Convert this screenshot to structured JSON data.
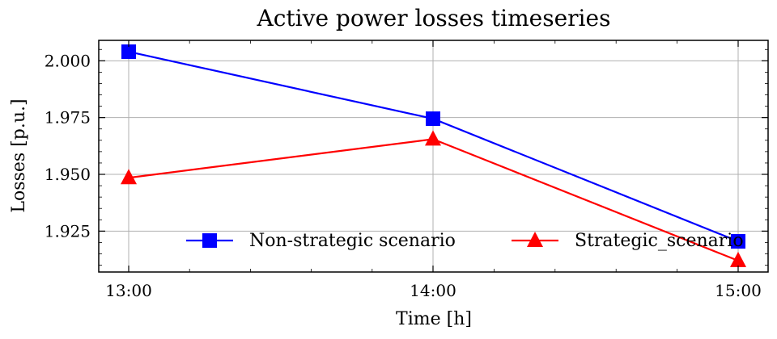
{
  "chart_data": {
    "type": "line",
    "title": "Active power losses timeseries",
    "xlabel": "Time [h]",
    "ylabel": "Losses [p.u.]",
    "categories": [
      "13:00",
      "14:00",
      "15:00"
    ],
    "ylim": [
      1.907,
      2.009
    ],
    "yticks": [
      1.925,
      1.95,
      1.975,
      2.0
    ],
    "ytick_labels": [
      "1.925",
      "1.950",
      "1.975",
      "2.000"
    ],
    "grid": true,
    "legend_position": "lower center",
    "series": [
      {
        "name": "Non-strategic scenario",
        "marker": "square",
        "color": "#0000ff",
        "values": [
          2.004,
          1.9745,
          1.9205
        ]
      },
      {
        "name": "Strategic_scenario",
        "marker": "triangle",
        "color": "#ff0000",
        "values": [
          1.9485,
          1.9655,
          1.912
        ]
      }
    ]
  }
}
